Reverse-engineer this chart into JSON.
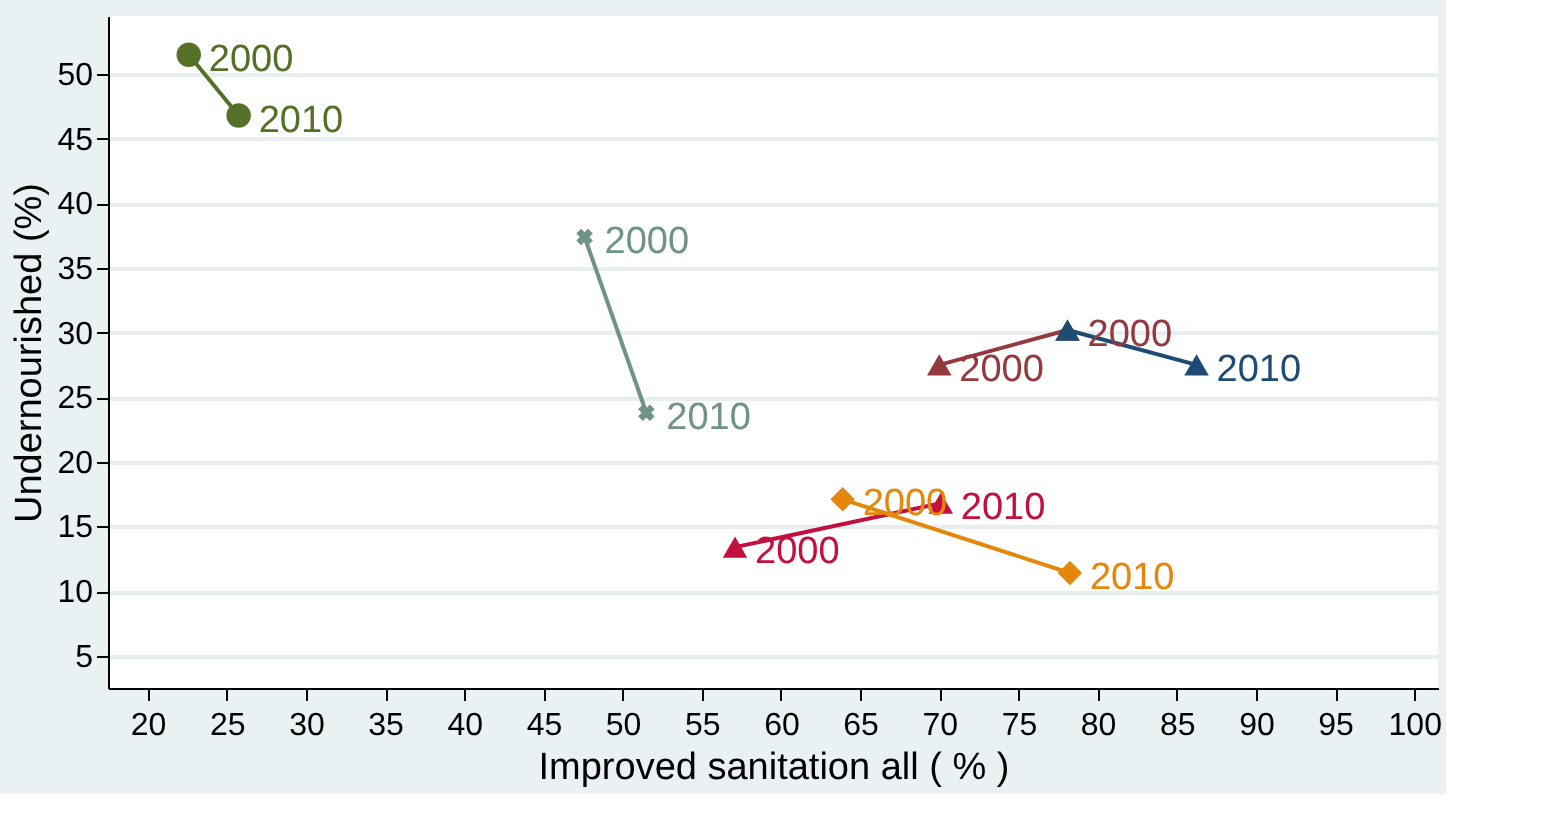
{
  "chart_data": {
    "type": "line",
    "xlabel": "Improved sanitation all ( % )",
    "ylabel": "Undernourished (%)",
    "xlim": [
      17.5,
      101.5
    ],
    "ylim": [
      2.5,
      54.5
    ],
    "xticks": [
      20,
      25,
      30,
      35,
      40,
      45,
      50,
      55,
      60,
      65,
      70,
      75,
      80,
      85,
      90,
      95,
      100
    ],
    "yticks": [
      5,
      10,
      15,
      20,
      25,
      30,
      35,
      40,
      45,
      50
    ],
    "grid": "y",
    "series": [
      {
        "color": "#557127",
        "marker": "circle",
        "x": [
          22.6,
          25.75
        ],
        "values": [
          51.5,
          46.8
        ]
      },
      {
        "color": "#6f9485",
        "marker": "cross",
        "x": [
          47.6,
          51.5
        ],
        "values": [
          37.4,
          23.8
        ]
      },
      {
        "color": "#943a3f",
        "marker": "triangle",
        "x": [
          70,
          78.1
        ],
        "values": [
          27.5,
          30.2
        ]
      },
      {
        "color": "#1d4b73",
        "marker": "triangle",
        "x": [
          78.1,
          86.25
        ],
        "values": [
          30.2,
          27.5
        ]
      },
      {
        "color": "#c4103f",
        "marker": "triangle",
        "x": [
          57.1,
          70.1
        ],
        "values": [
          13.4,
          16.8
        ]
      },
      {
        "color": "#e5870a",
        "marker": "diamond",
        "x": [
          63.9,
          78.25
        ],
        "values": [
          17.1,
          11.4
        ]
      }
    ],
    "annotations": [
      {
        "text": "2000",
        "x": 22.6,
        "y": 51.5
      },
      {
        "text": "2010",
        "x": 25.75,
        "y": 46.8
      },
      {
        "text": "2000",
        "x": 47.6,
        "y": 37.4
      },
      {
        "text": "2010",
        "x": 51.5,
        "y": 23.8
      },
      {
        "text": "2000",
        "x": 70,
        "y": 27.5
      },
      {
        "text": "2000",
        "x": 78.1,
        "y": 30.2
      },
      {
        "text": "2010",
        "x": 86.25,
        "y": 27.5
      },
      {
        "text": "2000",
        "x": 57.1,
        "y": 13.4
      },
      {
        "text": "2010",
        "x": 70.1,
        "y": 16.8
      },
      {
        "text": "2000",
        "x": 63.9,
        "y": 17.1
      },
      {
        "text": "2010",
        "x": 78.25,
        "y": 11.4
      }
    ]
  }
}
